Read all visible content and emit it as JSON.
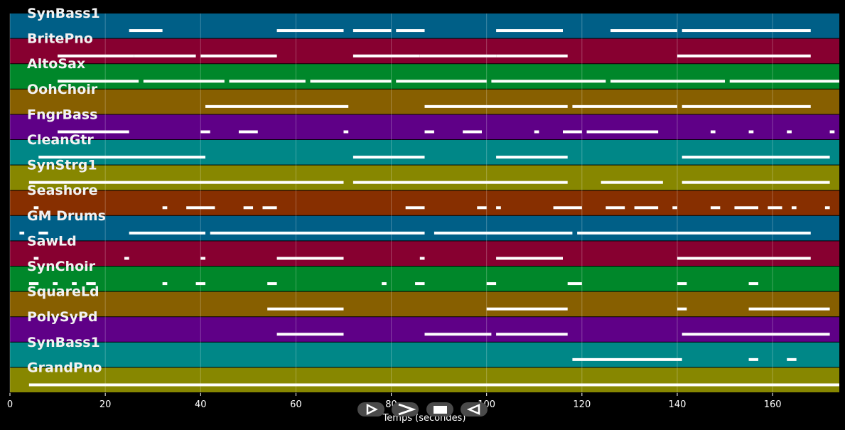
{
  "chart_data": {
    "type": "piano-roll",
    "xlabel": "Temps (secondes)",
    "xlim": [
      0,
      174
    ],
    "x_ticks": [
      0,
      20,
      40,
      60,
      80,
      100,
      120,
      140,
      160
    ],
    "grid": true,
    "tracks": [
      {
        "name": "SynBass1",
        "color": "#005f87",
        "segments": [
          [
            25,
            32
          ],
          [
            56,
            70
          ],
          [
            72,
            80
          ],
          [
            81,
            87
          ],
          [
            102,
            116
          ],
          [
            126,
            140
          ],
          [
            141,
            168
          ]
        ]
      },
      {
        "name": "BritePno",
        "color": "#870030",
        "segments": [
          [
            10,
            26
          ],
          [
            26,
            39
          ],
          [
            40,
            56
          ],
          [
            72,
            86
          ],
          [
            86,
            102
          ],
          [
            102,
            117
          ],
          [
            140,
            168
          ]
        ]
      },
      {
        "name": "AltoSax",
        "color": "#00872a",
        "segments": [
          [
            10,
            27
          ],
          [
            28,
            45
          ],
          [
            46,
            62
          ],
          [
            63,
            80
          ],
          [
            81,
            100
          ],
          [
            101,
            125
          ],
          [
            126,
            150
          ],
          [
            151,
            174
          ]
        ]
      },
      {
        "name": "OohChoir",
        "color": "#875f00",
        "segments": [
          [
            41,
            71
          ],
          [
            87,
            117
          ],
          [
            118,
            140
          ],
          [
            141,
            168
          ]
        ]
      },
      {
        "name": "FngrBass",
        "color": "#5f0087",
        "segments": [
          [
            10,
            25
          ],
          [
            40,
            42
          ],
          [
            48,
            52
          ],
          [
            70,
            71
          ],
          [
            87,
            89
          ],
          [
            95,
            99
          ],
          [
            110,
            111
          ],
          [
            116,
            120
          ],
          [
            121,
            136
          ],
          [
            147,
            148
          ],
          [
            155,
            156
          ],
          [
            163,
            164
          ],
          [
            172,
            173
          ]
        ]
      },
      {
        "name": "CleanGtr",
        "color": "#008787",
        "segments": [
          [
            6,
            41
          ],
          [
            72,
            87
          ],
          [
            102,
            117
          ],
          [
            141,
            172
          ]
        ]
      },
      {
        "name": "SynStrg1",
        "color": "#878700",
        "segments": [
          [
            4,
            70
          ],
          [
            72,
            117
          ],
          [
            124,
            137
          ],
          [
            141,
            172
          ]
        ]
      },
      {
        "name": "Seashore",
        "color": "#872f00",
        "segments": [
          [
            5,
            6
          ],
          [
            32,
            33
          ],
          [
            37,
            41
          ],
          [
            41,
            43
          ],
          [
            49,
            51
          ],
          [
            53,
            56
          ],
          [
            83,
            87
          ],
          [
            98,
            100
          ],
          [
            102,
            103
          ],
          [
            114,
            120
          ],
          [
            125,
            129
          ],
          [
            131,
            136
          ],
          [
            139,
            140
          ],
          [
            147,
            149
          ],
          [
            152,
            157
          ],
          [
            159,
            162
          ],
          [
            164,
            165
          ],
          [
            171,
            172
          ]
        ]
      },
      {
        "name": "GM Drums",
        "color": "#005f87",
        "segments": [
          [
            2,
            3
          ],
          [
            6,
            8
          ],
          [
            25,
            41
          ],
          [
            42,
            87
          ],
          [
            89,
            118
          ],
          [
            119,
            168
          ]
        ]
      },
      {
        "name": "SawLd",
        "color": "#870030",
        "segments": [
          [
            5,
            6
          ],
          [
            24,
            25
          ],
          [
            40,
            41
          ],
          [
            56,
            70
          ],
          [
            86,
            87
          ],
          [
            102,
            116
          ],
          [
            140,
            168
          ]
        ]
      },
      {
        "name": "SynChoir",
        "color": "#00872a",
        "segments": [
          [
            4,
            6
          ],
          [
            9,
            10
          ],
          [
            13,
            14
          ],
          [
            16,
            18
          ],
          [
            32,
            33
          ],
          [
            39,
            41
          ],
          [
            54,
            56
          ],
          [
            78,
            79
          ],
          [
            85,
            87
          ],
          [
            100,
            102
          ],
          [
            117,
            120
          ],
          [
            140,
            142
          ],
          [
            155,
            157
          ]
        ]
      },
      {
        "name": "SquareLd",
        "color": "#875f00",
        "segments": [
          [
            54,
            70
          ],
          [
            100,
            117
          ],
          [
            140,
            142
          ],
          [
            155,
            172
          ]
        ]
      },
      {
        "name": "PolySyPd",
        "color": "#5f0087",
        "segments": [
          [
            56,
            70
          ],
          [
            87,
            101
          ],
          [
            102,
            117
          ],
          [
            141,
            172
          ]
        ]
      },
      {
        "name": "SynBass1",
        "color": "#008787",
        "segments": [
          [
            118,
            141
          ],
          [
            155,
            157
          ],
          [
            163,
            165
          ]
        ]
      },
      {
        "name": "GrandPno",
        "color": "#878700",
        "segments": [
          [
            4,
            174
          ]
        ]
      }
    ]
  },
  "controls": [
    {
      "name": "play-icon",
      "glyph": "play"
    },
    {
      "name": "fast-forward-icon",
      "glyph": "forward"
    },
    {
      "name": "stop-icon",
      "glyph": "stop"
    },
    {
      "name": "rewind-icon",
      "glyph": "rewind"
    }
  ]
}
